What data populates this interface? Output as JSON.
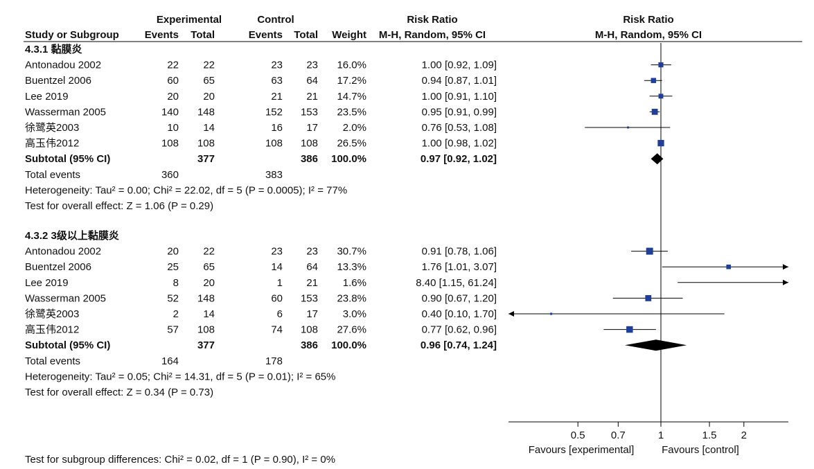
{
  "chart_data": {
    "type": "forest",
    "headers": {
      "study": "Study or Subgroup",
      "experimental": "Experimental",
      "control": "Control",
      "events": "Events",
      "total": "Total",
      "weight": "Weight",
      "effect_title": "Risk Ratio",
      "effect_method": "M-H, Random, 95% CI"
    },
    "subgroups": [
      {
        "title": "4.3.1 黏膜炎",
        "studies": [
          {
            "name": "Antonadou 2002",
            "exp_events": "22",
            "exp_total": "22",
            "ctl_events": "23",
            "ctl_total": "23",
            "weight": "16.0%",
            "rr_text": "1.00 [0.92, 1.09]",
            "rr": 1.0,
            "low": 0.92,
            "high": 1.09,
            "w": 16.0
          },
          {
            "name": "Buentzel 2006",
            "exp_events": "60",
            "exp_total": "65",
            "ctl_events": "63",
            "ctl_total": "64",
            "weight": "17.2%",
            "rr_text": "0.94 [0.87, 1.01]",
            "rr": 0.94,
            "low": 0.87,
            "high": 1.01,
            "w": 17.2
          },
          {
            "name": "Lee 2019",
            "exp_events": "20",
            "exp_total": "20",
            "ctl_events": "21",
            "ctl_total": "21",
            "weight": "14.7%",
            "rr_text": "1.00 [0.91, 1.10]",
            "rr": 1.0,
            "low": 0.91,
            "high": 1.1,
            "w": 14.7
          },
          {
            "name": "Wasserman 2005",
            "exp_events": "140",
            "exp_total": "148",
            "ctl_events": "152",
            "ctl_total": "153",
            "weight": "23.5%",
            "rr_text": "0.95 [0.91, 0.99]",
            "rr": 0.95,
            "low": 0.91,
            "high": 0.99,
            "w": 23.5
          },
          {
            "name": "徐鹭英2003",
            "exp_events": "10",
            "exp_total": "14",
            "ctl_events": "16",
            "ctl_total": "17",
            "weight": "2.0%",
            "rr_text": "0.76 [0.53, 1.08]",
            "rr": 0.76,
            "low": 0.53,
            "high": 1.08,
            "w": 2.0
          },
          {
            "name": "高玉伟2012",
            "exp_events": "108",
            "exp_total": "108",
            "ctl_events": "108",
            "ctl_total": "108",
            "weight": "26.5%",
            "rr_text": "1.00 [0.98, 1.02]",
            "rr": 1.0,
            "low": 0.98,
            "high": 1.02,
            "w": 26.5
          }
        ],
        "subtotal": {
          "label": "Subtotal (95% CI)",
          "exp_total": "377",
          "ctl_total": "386",
          "weight": "100.0%",
          "rr_text": "0.97 [0.92, 1.02]",
          "rr": 0.97,
          "low": 0.92,
          "high": 1.02
        },
        "total_events": {
          "label": "Total events",
          "exp": "360",
          "ctl": "383"
        },
        "heterogeneity": "Heterogeneity: Tau² = 0.00; Chi² = 22.02, df = 5 (P = 0.0005); I² = 77%",
        "overall_effect": "Test for overall effect: Z = 1.06 (P = 0.29)"
      },
      {
        "title": "4.3.2 3级以上黏膜炎",
        "studies": [
          {
            "name": "Antonadou 2002",
            "exp_events": "20",
            "exp_total": "22",
            "ctl_events": "23",
            "ctl_total": "23",
            "weight": "30.7%",
            "rr_text": "0.91 [0.78, 1.06]",
            "rr": 0.91,
            "low": 0.78,
            "high": 1.06,
            "w": 30.7
          },
          {
            "name": "Buentzel 2006",
            "exp_events": "25",
            "exp_total": "65",
            "ctl_events": "14",
            "ctl_total": "64",
            "weight": "13.3%",
            "rr_text": "1.76 [1.01, 3.07]",
            "rr": 1.76,
            "low": 1.01,
            "high": 3.07,
            "w": 13.3
          },
          {
            "name": "Lee 2019",
            "exp_events": "8",
            "exp_total": "20",
            "ctl_events": "1",
            "ctl_total": "21",
            "weight": "1.6%",
            "rr_text": "8.40 [1.15, 61.24]",
            "rr": 8.4,
            "low": 1.15,
            "high": 61.24,
            "w": 1.6
          },
          {
            "name": "Wasserman 2005",
            "exp_events": "52",
            "exp_total": "148",
            "ctl_events": "60",
            "ctl_total": "153",
            "weight": "23.8%",
            "rr_text": "0.90 [0.67, 1.20]",
            "rr": 0.9,
            "low": 0.67,
            "high": 1.2,
            "w": 23.8
          },
          {
            "name": "徐鹭英2003",
            "exp_events": "2",
            "exp_total": "14",
            "ctl_events": "6",
            "ctl_total": "17",
            "weight": "3.0%",
            "rr_text": "0.40 [0.10, 1.70]",
            "rr": 0.4,
            "low": 0.1,
            "high": 1.7,
            "w": 3.0
          },
          {
            "name": "高玉伟2012",
            "exp_events": "57",
            "exp_total": "108",
            "ctl_events": "74",
            "ctl_total": "108",
            "weight": "27.6%",
            "rr_text": "0.77 [0.62, 0.96]",
            "rr": 0.77,
            "low": 0.62,
            "high": 0.96,
            "w": 27.6
          }
        ],
        "subtotal": {
          "label": "Subtotal (95% CI)",
          "exp_total": "377",
          "ctl_total": "386",
          "weight": "100.0%",
          "rr_text": "0.96 [0.74, 1.24]",
          "rr": 0.96,
          "low": 0.74,
          "high": 1.24
        },
        "total_events": {
          "label": "Total events",
          "exp": "164",
          "ctl": "178"
        },
        "heterogeneity": "Heterogeneity: Tau² = 0.05; Chi² = 14.31, df = 5 (P = 0.01); I² = 65%",
        "overall_effect": "Test for overall effect: Z = 0.34 (P = 0.73)"
      }
    ],
    "subgroup_differences": "Test for subgroup differences: Chi² = 0.02, df = 1 (P = 0.90), I² = 0%",
    "x_axis": {
      "scale": "log",
      "ticks": [
        "0.5",
        "0.7",
        "1",
        "1.5",
        "2"
      ],
      "tick_values": [
        0.5,
        0.7,
        1,
        1.5,
        2
      ],
      "range": [
        0.28,
        2.9
      ],
      "favours_left": "Favours [experimental]",
      "favours_right": "Favours [control]"
    },
    "colors": {
      "marker": "#1f3f99",
      "diamond": "#000000",
      "lines": "#000000"
    }
  }
}
